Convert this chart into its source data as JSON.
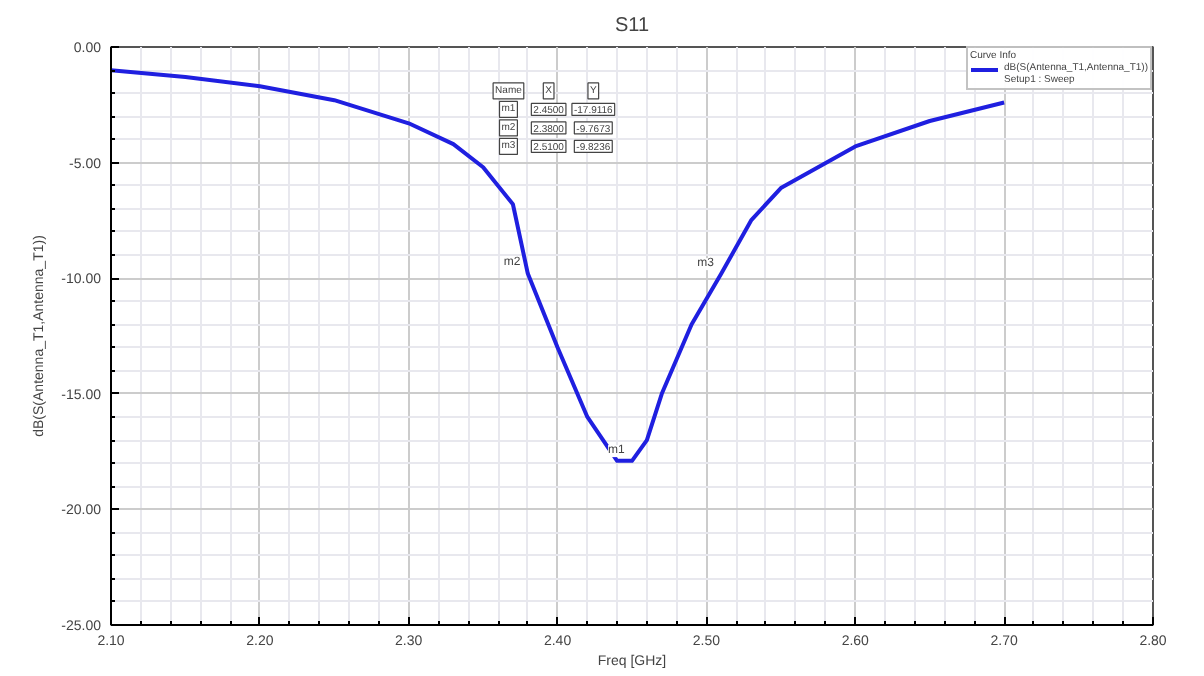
{
  "chart_data": {
    "type": "line",
    "title": "S11",
    "xlabel": "Freq [GHz]",
    "ylabel": "dB(S(Antenna_T1,Antenna_T1))",
    "legend_title": "Curve Info",
    "x": [
      2.1,
      2.15,
      2.2,
      2.25,
      2.3,
      2.33,
      2.35,
      2.37,
      2.38,
      2.4,
      2.42,
      2.44,
      2.45,
      2.46,
      2.47,
      2.49,
      2.51,
      2.53,
      2.55,
      2.6,
      2.65,
      2.7
    ],
    "series": [
      {
        "name": "dB(S(Antenna_T1,Antenna_T1))",
        "color": "#1f1fe0",
        "values": [
          -1.0,
          -1.3,
          -1.7,
          -2.3,
          -3.3,
          -4.2,
          -5.2,
          -6.8,
          -9.8,
          -13.0,
          -16.0,
          -17.9,
          -17.9,
          -17.0,
          -15.0,
          -12.0,
          -9.8,
          -7.5,
          -6.1,
          -4.3,
          -3.2,
          -2.4
        ]
      }
    ],
    "annotations": [
      "Name",
      "X",
      "Y",
      "m1",
      "2.4500",
      "-17.9116",
      "m2",
      "2.3800",
      "-9.7673",
      "m3",
      "2.5100",
      "-9.8236",
      "Setup1 : Sweep",
      {
        "text": "m1",
        "x": 2.45,
        "y": -17.9116
      },
      {
        "text": "m2",
        "x": 2.38,
        "y": -9.7673
      },
      {
        "text": "m3",
        "x": 2.51,
        "y": -9.8236
      }
    ],
    "xlim": [
      2.1,
      2.8
    ],
    "ylim": [
      -25,
      0
    ],
    "xticks": [
      {
        "value": 2.1,
        "label": "2.10"
      },
      {
        "value": 2.2,
        "label": "2.20"
      },
      {
        "value": 2.3,
        "label": "2.30"
      },
      {
        "value": 2.4,
        "label": "2.40"
      },
      {
        "value": 2.5,
        "label": "2.50"
      },
      {
        "value": 2.6,
        "label": "2.60"
      },
      {
        "value": 2.7,
        "label": "2.70"
      },
      {
        "value": 2.8,
        "label": "2.80"
      }
    ],
    "yticks": [
      {
        "value": -25,
        "label": "-25.00"
      },
      {
        "value": -20,
        "label": "-20.00"
      },
      {
        "value": -15,
        "label": "-15.00"
      },
      {
        "value": -10,
        "label": "-10.00"
      },
      {
        "value": -5,
        "label": "-5.00"
      },
      {
        "value": 0,
        "label": "0.00"
      }
    ],
    "grid": true,
    "legend": "top right",
    "line_style": "solid",
    "marker": "none"
  }
}
